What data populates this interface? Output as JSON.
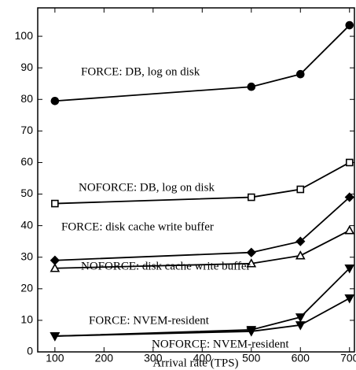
{
  "chart_data": {
    "type": "line",
    "x_label": "Arrival rate (TPS)",
    "xlim": [
      65,
      710
    ],
    "xticks": [
      100,
      200,
      300,
      400,
      500,
      600,
      700
    ],
    "ylim": [
      0,
      109
    ],
    "yticks": [
      0,
      10,
      20,
      30,
      40,
      50,
      60,
      70,
      80,
      90,
      100
    ],
    "series": [
      {
        "name": "FORCE: DB, log on disk",
        "color": "#000000",
        "marker": "circle",
        "x": [
          100,
          500,
          600,
          700
        ],
        "values": [
          79.5,
          84,
          88,
          103.5
        ]
      },
      {
        "name": "NOFORCE: DB, log on disk",
        "color": "#000000",
        "marker": "square",
        "x": [
          100,
          500,
          600,
          700
        ],
        "values": [
          47,
          49,
          51.5,
          60
        ]
      },
      {
        "name": "FORCE: disk cache write buffer",
        "color": "#000000",
        "marker": "diamond",
        "x": [
          100,
          500,
          600,
          700
        ],
        "values": [
          29,
          31.5,
          35,
          49
        ]
      },
      {
        "name": "NOFORCE: disk cache write buffer",
        "color": "#000000",
        "marker": "triangle",
        "x": [
          100,
          500,
          600,
          700
        ],
        "values": [
          26.5,
          28,
          30.5,
          38.5
        ]
      },
      {
        "name": "FORCE: NVEM-resident",
        "color": "#000000",
        "marker": "triangle-down",
        "x": [
          100,
          500,
          600,
          700
        ],
        "values": [
          5,
          7,
          11,
          26.5
        ]
      },
      {
        "name": "NOFORCE: NVEM-resident",
        "color": "#000000",
        "marker": "triangle-down",
        "x": [
          100,
          500,
          600,
          700
        ],
        "values": [
          5,
          6.5,
          8.5,
          17
        ]
      }
    ]
  }
}
